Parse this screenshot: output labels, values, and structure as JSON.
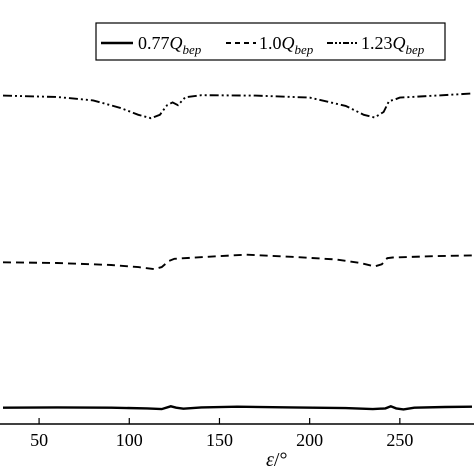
{
  "chart_data": {
    "type": "line",
    "xlabel_symbol": "ε",
    "xlabel_unit": "/°",
    "x_ticks": [
      50,
      100,
      150,
      200,
      250
    ],
    "xlim": [
      30,
      290
    ],
    "ylim": [
      0,
      1
    ],
    "legend_position": "top-right",
    "series": [
      {
        "name": "0.77Q_bep",
        "label_num": "0.77",
        "label_q": "Q",
        "label_sub": "bep",
        "style": "solid",
        "points": [
          [
            30,
            0.03
          ],
          [
            60,
            0.031
          ],
          [
            90,
            0.03
          ],
          [
            110,
            0.028
          ],
          [
            118,
            0.026
          ],
          [
            123,
            0.034
          ],
          [
            126,
            0.03
          ],
          [
            130,
            0.027
          ],
          [
            140,
            0.031
          ],
          [
            160,
            0.033
          ],
          [
            190,
            0.031
          ],
          [
            220,
            0.029
          ],
          [
            235,
            0.026
          ],
          [
            242,
            0.028
          ],
          [
            245,
            0.034
          ],
          [
            248,
            0.028
          ],
          [
            252,
            0.025
          ],
          [
            258,
            0.03
          ],
          [
            275,
            0.032
          ],
          [
            290,
            0.033
          ]
        ]
      },
      {
        "name": "1.0Q_bep",
        "label_num": "1.0",
        "label_q": "Q",
        "label_sub": "bep",
        "style": "dashed",
        "points": [
          [
            30,
            0.454
          ],
          [
            60,
            0.452
          ],
          [
            90,
            0.446
          ],
          [
            105,
            0.44
          ],
          [
            114,
            0.434
          ],
          [
            118,
            0.44
          ],
          [
            122,
            0.458
          ],
          [
            125,
            0.464
          ],
          [
            150,
            0.472
          ],
          [
            165,
            0.476
          ],
          [
            190,
            0.47
          ],
          [
            215,
            0.462
          ],
          [
            228,
            0.452
          ],
          [
            236,
            0.442
          ],
          [
            240,
            0.448
          ],
          [
            243,
            0.466
          ],
          [
            246,
            0.468
          ],
          [
            270,
            0.472
          ],
          [
            290,
            0.474
          ]
        ]
      },
      {
        "name": "1.23Q_bep",
        "label_num": "1.23",
        "label_q": "Q",
        "label_sub": "bep",
        "style": "dash-dot",
        "points": [
          [
            30,
            0.94
          ],
          [
            60,
            0.936
          ],
          [
            80,
            0.926
          ],
          [
            95,
            0.904
          ],
          [
            105,
            0.884
          ],
          [
            112,
            0.874
          ],
          [
            117,
            0.884
          ],
          [
            121,
            0.912
          ],
          [
            124,
            0.92
          ],
          [
            127,
            0.912
          ],
          [
            131,
            0.935
          ],
          [
            140,
            0.941
          ],
          [
            170,
            0.94
          ],
          [
            200,
            0.934
          ],
          [
            220,
            0.91
          ],
          [
            230,
            0.884
          ],
          [
            236,
            0.876
          ],
          [
            241,
            0.892
          ],
          [
            244,
            0.924
          ],
          [
            247,
            0.928
          ],
          [
            250,
            0.934
          ],
          [
            270,
            0.94
          ],
          [
            290,
            0.946
          ]
        ]
      }
    ]
  }
}
